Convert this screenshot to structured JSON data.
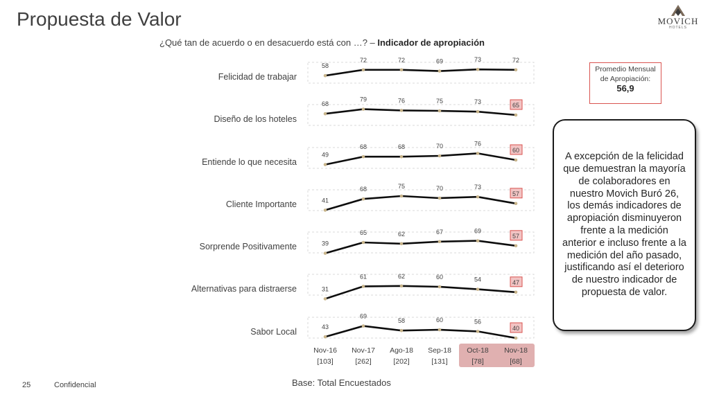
{
  "title": "Propuesta de Valor",
  "logo": {
    "name": "MOVICH",
    "sub": "HOTELS"
  },
  "question": {
    "text": "¿Qué tan de acuerdo o en desacuerdo está con …? – ",
    "bold": "Indicador de apropiación"
  },
  "promedio": {
    "label": "Promedio Mensual de Apropiación:",
    "value": "56,9"
  },
  "note": "A excepción de la felicidad que demuestran la mayoría de colaboradores en nuestro Movich Buró 26, los demás indicadores de apropiación disminuyeron frente a la medición anterior e incluso frente a la medición del año pasado, justificando así el deterioro de nuestro indicador de propuesta de valor.",
  "footer": {
    "page": "25",
    "confidential": "Confidencial",
    "base": "Base: Total Encuestados"
  },
  "colors": {
    "line": "#0d0d0d",
    "marker": "#c8b48a",
    "highlight_fill": "#f2c4c4",
    "highlight_border": "#d9534f",
    "column_fill": "#e0b0b0"
  },
  "chart_data": {
    "type": "line",
    "categories": [
      "Nov-16",
      "Nov-17",
      "Ago-18",
      "Sep-18",
      "Oct-18",
      "Nov-18"
    ],
    "bases": [
      "[103]",
      "[262]",
      "[202]",
      "[131]",
      "[78]",
      "[68]"
    ],
    "highlighted_categories": [
      "Oct-18",
      "Nov-18"
    ],
    "highlighted_last_point": [
      false,
      true,
      true,
      true,
      true,
      true,
      true
    ],
    "series": [
      {
        "name": "Felicidad de trabajar",
        "values": [
          58,
          72,
          72,
          69,
          73,
          72
        ]
      },
      {
        "name": "Diseño de los hoteles",
        "values": [
          68,
          79,
          76,
          75,
          73,
          65
        ]
      },
      {
        "name": "Entiende lo que necesita",
        "values": [
          49,
          68,
          68,
          70,
          76,
          60
        ]
      },
      {
        "name": "Cliente Importante",
        "values": [
          41,
          68,
          75,
          70,
          73,
          57
        ]
      },
      {
        "name": "Sorprende Positivamente",
        "values": [
          39,
          65,
          62,
          67,
          69,
          57
        ]
      },
      {
        "name": "Alternativas para distraerse",
        "values": [
          31,
          61,
          62,
          60,
          54,
          47
        ]
      },
      {
        "name": "Sabor Local",
        "values": [
          43,
          69,
          58,
          60,
          56,
          40
        ]
      }
    ]
  }
}
